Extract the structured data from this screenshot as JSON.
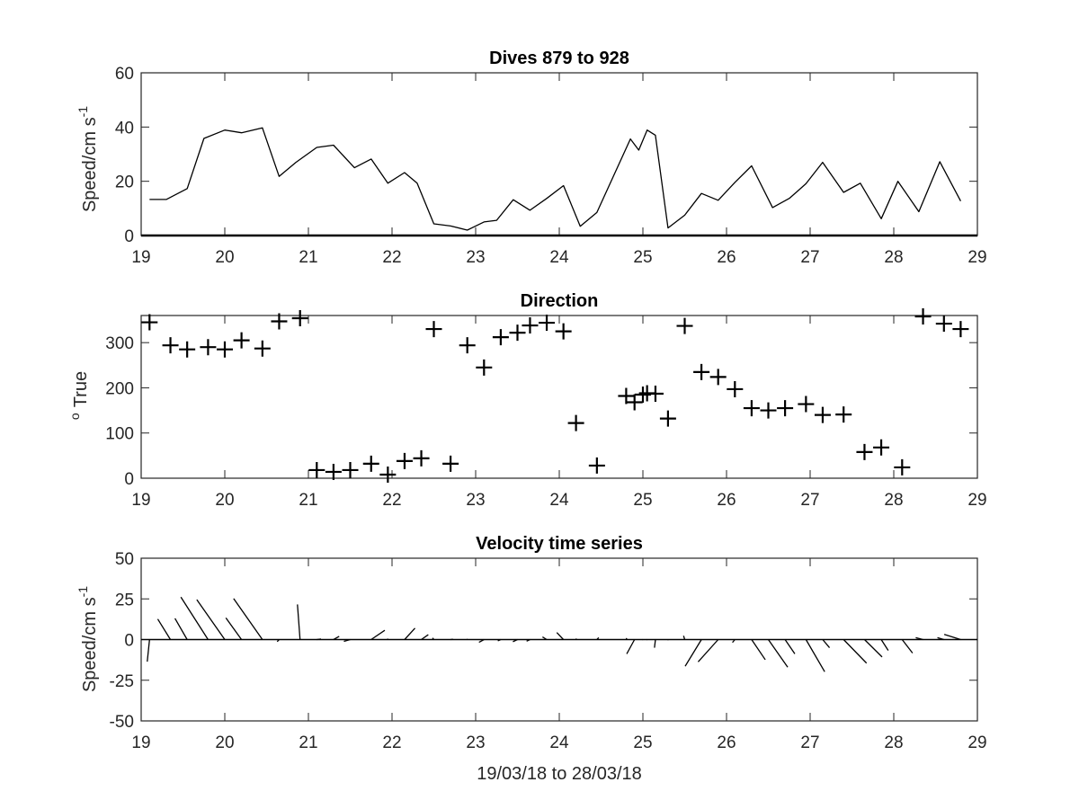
{
  "figure": {
    "xlabel": "19/03/18 to 28/03/18",
    "speed_ylabel_main": "Speed/cm s",
    "speed_ylabel_sup": "-1",
    "dir_ylabel_sup": "o",
    "dir_ylabel_main": "True"
  },
  "chart_data": [
    {
      "type": "line",
      "title": "Dives 879 to 928",
      "xlabel": "",
      "ylabel": "Speed/cm s-1",
      "xlim": [
        19,
        29
      ],
      "ylim": [
        0,
        60
      ],
      "xticks": [
        19,
        20,
        21,
        22,
        23,
        24,
        25,
        26,
        27,
        28,
        29
      ],
      "yticks": [
        0,
        20,
        40,
        60
      ],
      "grid": false,
      "series": [
        {
          "color": "#000000",
          "x": [
            19.1,
            19.3,
            19.55,
            19.75,
            20.0,
            20.2,
            20.45,
            20.65,
            20.85,
            21.1,
            21.3,
            21.55,
            21.75,
            21.95,
            22.15,
            22.3,
            22.5,
            22.7,
            22.9,
            23.1,
            23.25,
            23.45,
            23.65,
            23.85,
            24.05,
            24.25,
            24.45,
            24.85,
            24.95,
            25.05,
            25.15,
            25.3,
            25.5,
            25.7,
            25.9,
            26.1,
            26.3,
            26.55,
            26.75,
            26.95,
            27.15,
            27.4,
            27.6,
            27.85,
            28.05,
            28.3,
            28.55,
            28.8
          ],
          "y": [
            13.3,
            13.3,
            17.3,
            35.8,
            38.9,
            37.9,
            39.7,
            21.8,
            27.0,
            32.5,
            33.3,
            25.0,
            28.2,
            19.3,
            23.2,
            19.3,
            4.3,
            3.5,
            2.0,
            5.0,
            5.6,
            13.2,
            9.3,
            13.7,
            18.4,
            3.4,
            8.5,
            35.6,
            31.5,
            38.9,
            37.0,
            2.8,
            7.5,
            15.5,
            13.0,
            19.6,
            25.7,
            10.3,
            13.7,
            19.1,
            27.0,
            15.9,
            19.3,
            6.2,
            20.0,
            8.8,
            27.2,
            12.7
          ]
        }
      ]
    },
    {
      "type": "scatter",
      "title": "Direction",
      "xlabel": "",
      "ylabel": "o True",
      "xlim": [
        19,
        29
      ],
      "ylim": [
        0,
        360
      ],
      "xticks": [
        19,
        20,
        21,
        22,
        23,
        24,
        25,
        26,
        27,
        28,
        29
      ],
      "yticks": [
        0,
        100,
        200,
        300
      ],
      "grid": false,
      "marker": "+",
      "series": [
        {
          "color": "#000000",
          "x": [
            19.1,
            19.35,
            19.55,
            19.8,
            20.0,
            20.2,
            20.45,
            20.65,
            20.9,
            21.1,
            21.3,
            21.5,
            21.75,
            21.95,
            22.15,
            22.35,
            22.5,
            22.7,
            22.9,
            23.1,
            23.3,
            23.5,
            23.65,
            23.85,
            24.05,
            24.2,
            24.45,
            24.8,
            24.9,
            25.0,
            25.05,
            25.15,
            25.3,
            25.5,
            25.7,
            25.9,
            26.1,
            26.3,
            26.5,
            26.7,
            26.95,
            27.15,
            27.4,
            27.65,
            27.85,
            28.1,
            28.35,
            28.6,
            28.8
          ],
          "y": [
            345,
            294,
            285,
            290,
            285,
            305,
            287,
            347,
            354,
            18,
            14,
            18,
            32,
            8,
            38,
            44,
            330,
            32,
            294,
            245,
            312,
            322,
            338,
            344,
            325,
            122,
            28,
            182,
            168,
            185,
            188,
            187,
            132,
            337,
            235,
            224,
            197,
            155,
            150,
            155,
            164,
            140,
            141,
            58,
            68,
            24,
            358,
            342,
            330
          ]
        }
      ]
    },
    {
      "type": "line",
      "title": "Velocity time series",
      "xlabel": "19/03/18 to 28/03/18",
      "ylabel": "Speed/cm s-1",
      "xlim": [
        19,
        29
      ],
      "ylim": [
        -50,
        50
      ],
      "xticks": [
        19,
        20,
        21,
        22,
        23,
        24,
        25,
        26,
        27,
        28,
        29
      ],
      "yticks": [
        -50,
        -25,
        0,
        25,
        50
      ],
      "grid": false,
      "style": "stick plot (east/north velocity vectors from each time point on the zero line)",
      "series": [
        {
          "color": "#000000",
          "x": [
            19.1,
            19.35,
            19.55,
            19.8,
            20.0,
            20.2,
            20.45,
            20.65,
            20.9,
            21.1,
            21.3,
            21.5,
            21.75,
            21.95,
            22.15,
            22.35,
            22.5,
            22.7,
            22.9,
            23.1,
            23.3,
            23.5,
            23.65,
            23.85,
            24.05,
            24.2,
            24.45,
            24.8,
            24.9,
            25.0,
            25.05,
            25.15,
            25.3,
            25.5,
            25.7,
            25.9,
            26.1,
            26.3,
            26.5,
            26.7,
            26.95,
            27.15,
            27.4,
            27.65,
            27.85,
            28.1,
            28.35,
            28.6,
            28.8
          ],
          "u": [
            -1.4,
            -7.8,
            -7.5,
            -16.7,
            -17.2,
            -9.6,
            -17.7,
            -1.2,
            -1.6,
            2.6,
            3.5,
            -3.9,
            8.4,
            -0.3,
            6.4,
            4.3,
            -0.8,
            1.5,
            -0.3,
            -3.1,
            -1.8,
            -2.8,
            -2.1,
            -2.6,
            -4.1,
            0.3,
            1.1,
            0.3,
            -4.8,
            -0.3,
            -0.3,
            -0.6,
            0.3,
            -0.7,
            -10.0,
            -12.3,
            -1.5,
            8.4,
            11.9,
            6.0,
            11.5,
            4.2,
            14.1,
            10.8,
            4.3,
            6.4,
            -4.5,
            -4.0,
            -10.1
          ],
          "v": [
            -13.6,
            12.6,
            13.0,
            26.1,
            24.5,
            13.3,
            25.2,
            -1.3,
            21.6,
            0.3,
            2.0,
            -1.1,
            5.7,
            0.5,
            7.0,
            3.0,
            1.0,
            0.2,
            0.3,
            -1.7,
            -0.8,
            -1.3,
            -1.0,
            1.6,
            4.3,
            0.6,
            1.2,
            0.9,
            -8.8,
            -0.1,
            -0.1,
            -5.0,
            -0.3,
            2.3,
            -16.4,
            -13.7,
            -1.8,
            -12.4,
            -17.0,
            -8.8,
            -19.8,
            -5.0,
            -14.5,
            -10.7,
            -6.7,
            -8.3,
            1.2,
            1.2,
            3.2
          ]
        }
      ]
    }
  ]
}
